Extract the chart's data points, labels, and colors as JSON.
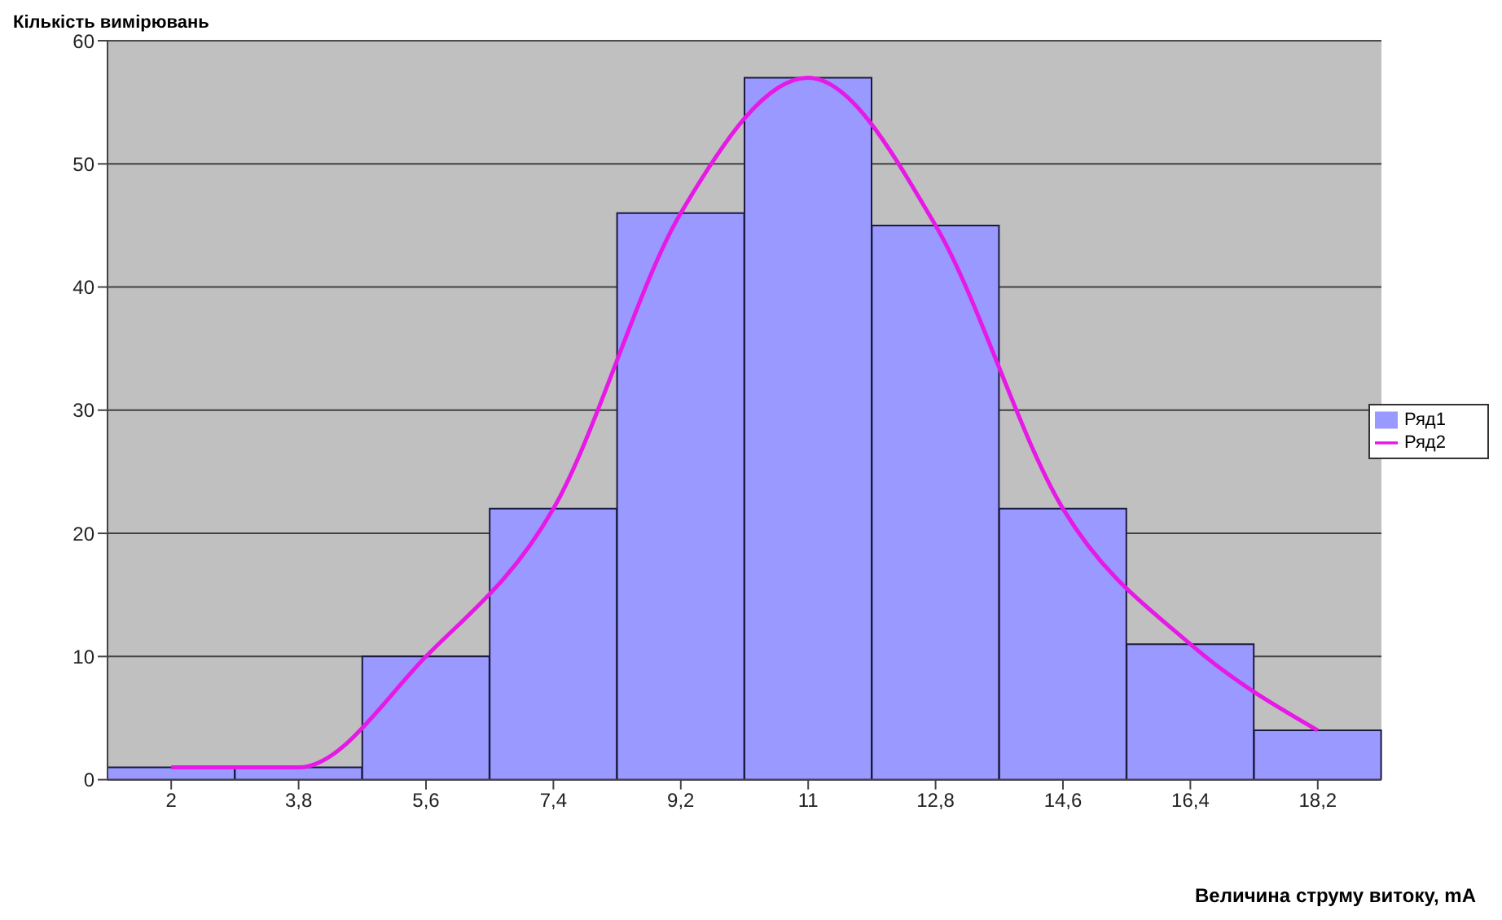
{
  "chart_data": {
    "type": "bar",
    "xlabel": "Величина струму витоку, mA",
    "ylabel": "Кількість вимірювань",
    "categories": [
      "2",
      "3,8",
      "5,6",
      "7,4",
      "9,2",
      "11",
      "12,8",
      "14,6",
      "16,4",
      "18,2"
    ],
    "series": [
      {
        "name": "Ряд1",
        "color": "#9999ff",
        "values": [
          1,
          1,
          10,
          22,
          46,
          57,
          45,
          22,
          11,
          4
        ]
      },
      {
        "name": "Ряд2",
        "type": "line",
        "color": "#e619e6",
        "values": [
          1,
          1,
          10,
          22,
          46,
          57,
          45,
          22,
          11,
          4
        ]
      }
    ],
    "ylim": [
      0,
      60
    ],
    "yticks": [
      0,
      10,
      20,
      30,
      40,
      50,
      60
    ],
    "grid": "y",
    "legend": "right",
    "marker": "none"
  }
}
